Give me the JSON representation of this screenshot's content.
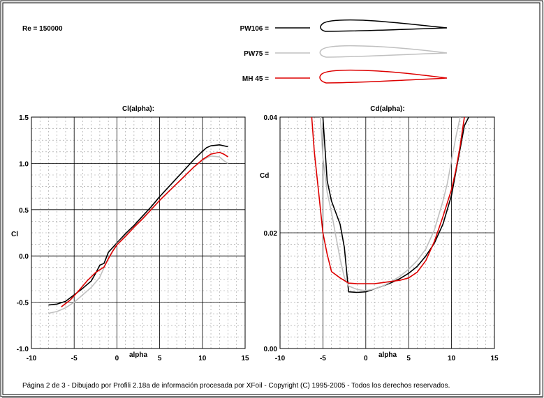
{
  "header": {
    "reynolds": "Re = 150000"
  },
  "legend": [
    {
      "name": "PW106 =",
      "color": "#000000"
    },
    {
      "name": "PW75 =",
      "color": "#c0c0c0"
    },
    {
      "name": "MH 45 =",
      "color": "#dd0000"
    }
  ],
  "footer": {
    "text": "Página 2 de 3 - Dibujado por Profili 2.18a de información procesada por XFoil - Copyright (C) 1995-2005 - Todos los derechos reservados."
  },
  "chart_data": [
    {
      "type": "line",
      "title": "Cl(alpha):",
      "xlabel": "alpha",
      "ylabel": "Cl",
      "xlim": [
        -10,
        15
      ],
      "ylim": [
        -1.0,
        1.5
      ],
      "xticks": [
        "-10",
        "-5",
        "0",
        "5",
        "10",
        "15"
      ],
      "yticks": [
        "-1.0",
        "-0.5",
        "0.0",
        "0.5",
        "1.0",
        "1.5"
      ],
      "grid": true,
      "series": [
        {
          "name": "PW106 =",
          "color": "#000000",
          "x": [
            -8,
            -7,
            -6,
            -5,
            -4,
            -3,
            -2.5,
            -2,
            -1.5,
            -1,
            0,
            1,
            2,
            3,
            4,
            5,
            6,
            7,
            8,
            9,
            10,
            10.5,
            11,
            12,
            13
          ],
          "y": [
            -0.53,
            -0.52,
            -0.49,
            -0.42,
            -0.35,
            -0.27,
            -0.19,
            -0.1,
            -0.08,
            0.04,
            0.14,
            0.24,
            0.33,
            0.43,
            0.53,
            0.64,
            0.74,
            0.84,
            0.94,
            1.04,
            1.13,
            1.17,
            1.19,
            1.2,
            1.18
          ]
        },
        {
          "name": "PW75 =",
          "color": "#c0c0c0",
          "x": [
            -8,
            -7,
            -6,
            -5,
            -4,
            -3,
            -2,
            -1,
            0,
            1,
            2,
            3,
            4,
            5,
            6,
            7,
            8,
            9,
            10,
            10.5,
            11,
            12,
            12.5,
            13
          ],
          "y": [
            -0.62,
            -0.6,
            -0.56,
            -0.5,
            -0.42,
            -0.34,
            -0.23,
            -0.02,
            0.13,
            0.22,
            0.31,
            0.41,
            0.5,
            0.6,
            0.69,
            0.78,
            0.87,
            0.96,
            1.03,
            1.06,
            1.08,
            1.07,
            1.03,
            1.0
          ]
        },
        {
          "name": "MH 45 =",
          "color": "#dd0000",
          "x": [
            -6.5,
            -5.5,
            -4.5,
            -3.5,
            -2.5,
            -1.5,
            -1,
            -0.5,
            0,
            1,
            2,
            3,
            4,
            5,
            6,
            7,
            8,
            9,
            10,
            11,
            12,
            12.5,
            13
          ],
          "y": [
            -0.55,
            -0.48,
            -0.38,
            -0.27,
            -0.18,
            -0.12,
            -0.03,
            0.05,
            0.12,
            0.21,
            0.31,
            0.4,
            0.5,
            0.6,
            0.69,
            0.78,
            0.87,
            0.96,
            1.04,
            1.1,
            1.12,
            1.1,
            1.07
          ]
        }
      ]
    },
    {
      "type": "line",
      "title": "Cd(alpha):",
      "xlabel": "alpha",
      "ylabel": "Cd",
      "xlim": [
        -10,
        15
      ],
      "ylim": [
        0.0,
        0.04
      ],
      "xticks": [
        "-10",
        "-5",
        "0",
        "5",
        "10",
        "15"
      ],
      "yticks": [
        "0.00",
        "0.02",
        "0.04"
      ],
      "grid": true,
      "series": [
        {
          "name": "PW106 =",
          "color": "#000000",
          "x": [
            -5,
            -4.5,
            -4,
            -3.5,
            -3,
            -2.5,
            -2,
            -1,
            0,
            1,
            2,
            3,
            4,
            5,
            6,
            7,
            8,
            9,
            10,
            10.5,
            11,
            11.5,
            12
          ],
          "y": [
            0.04,
            0.029,
            0.0255,
            0.0235,
            0.0215,
            0.0175,
            0.0098,
            0.0097,
            0.0098,
            0.0103,
            0.0108,
            0.0114,
            0.0121,
            0.013,
            0.0142,
            0.016,
            0.0182,
            0.0215,
            0.0265,
            0.0305,
            0.0345,
            0.0385,
            0.04
          ]
        },
        {
          "name": "PW75 =",
          "color": "#c0c0c0",
          "x": [
            -5.3,
            -5,
            -4.5,
            -4,
            -3.5,
            -3,
            -2.5,
            -2,
            -1,
            0,
            1,
            2,
            3,
            4,
            5,
            6,
            7,
            8,
            9,
            9.5,
            10,
            10.5,
            11
          ],
          "y": [
            0.04,
            0.033,
            0.027,
            0.0235,
            0.0195,
            0.0155,
            0.0123,
            0.0108,
            0.0102,
            0.01,
            0.0103,
            0.0108,
            0.0116,
            0.0125,
            0.0137,
            0.0152,
            0.0172,
            0.0205,
            0.0255,
            0.0285,
            0.0325,
            0.0365,
            0.04
          ]
        },
        {
          "name": "MH 45 =",
          "color": "#dd0000",
          "x": [
            -6.3,
            -6,
            -5.5,
            -5,
            -4.5,
            -4,
            -3,
            -2,
            -1,
            0,
            1,
            2,
            3,
            4,
            5,
            6,
            7,
            8,
            9,
            10,
            10.5,
            11,
            11.5
          ],
          "y": [
            0.04,
            0.034,
            0.027,
            0.02,
            0.0163,
            0.0133,
            0.0122,
            0.0113,
            0.0112,
            0.0112,
            0.0112,
            0.0114,
            0.0116,
            0.0118,
            0.0122,
            0.0132,
            0.0152,
            0.0185,
            0.0228,
            0.0275,
            0.0308,
            0.035,
            0.04
          ]
        }
      ]
    }
  ]
}
